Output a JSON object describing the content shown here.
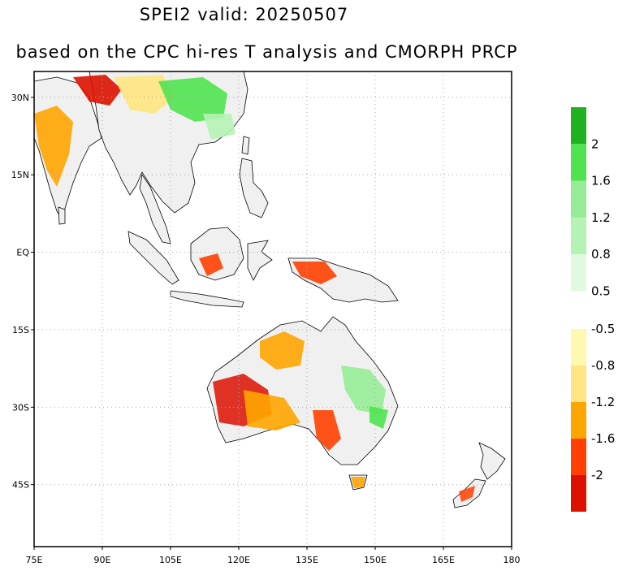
{
  "title": "SPEI2   valid: 20250507",
  "subtitle": "based on the CPC hi-res T analysis and CMORPH PRCP",
  "map": {
    "lon_range": [
      75,
      180
    ],
    "lat_range": [
      -57,
      35
    ],
    "x_ticks": [
      {
        "value": 75,
        "label": "75E"
      },
      {
        "value": 90,
        "label": "90E"
      },
      {
        "value": 105,
        "label": "105E"
      },
      {
        "value": 120,
        "label": "120E"
      },
      {
        "value": 135,
        "label": "135E"
      },
      {
        "value": 150,
        "label": "150E"
      },
      {
        "value": 165,
        "label": "165E"
      },
      {
        "value": 180,
        "label": "180"
      }
    ],
    "y_ticks": [
      {
        "value": 30,
        "label": "30N"
      },
      {
        "value": 15,
        "label": "15N"
      },
      {
        "value": 0,
        "label": "EQ"
      },
      {
        "value": -15,
        "label": "15S"
      },
      {
        "value": -30,
        "label": "30S"
      },
      {
        "value": -45,
        "label": "45S"
      }
    ],
    "grid": true,
    "grid_style": "dotted"
  },
  "colorbar": {
    "wet": {
      "colors": [
        "#1fb11f",
        "#4fe34f",
        "#96ec96",
        "#b5f3b5",
        "#e0fae0"
      ],
      "labels": [
        "2",
        "1.6",
        "1.2",
        "0.8",
        "0.5"
      ]
    },
    "dry": {
      "colors": [
        "#fff8b0",
        "#ffe680",
        "#ffa500",
        "#ff4000",
        "#dd1100"
      ],
      "labels": [
        "-0.5",
        "-0.8",
        "-1.2",
        "-1.6",
        "-2"
      ]
    }
  },
  "colors": {
    "coast": "#000000",
    "border": "#999999",
    "grid": "#aaaaaa"
  }
}
